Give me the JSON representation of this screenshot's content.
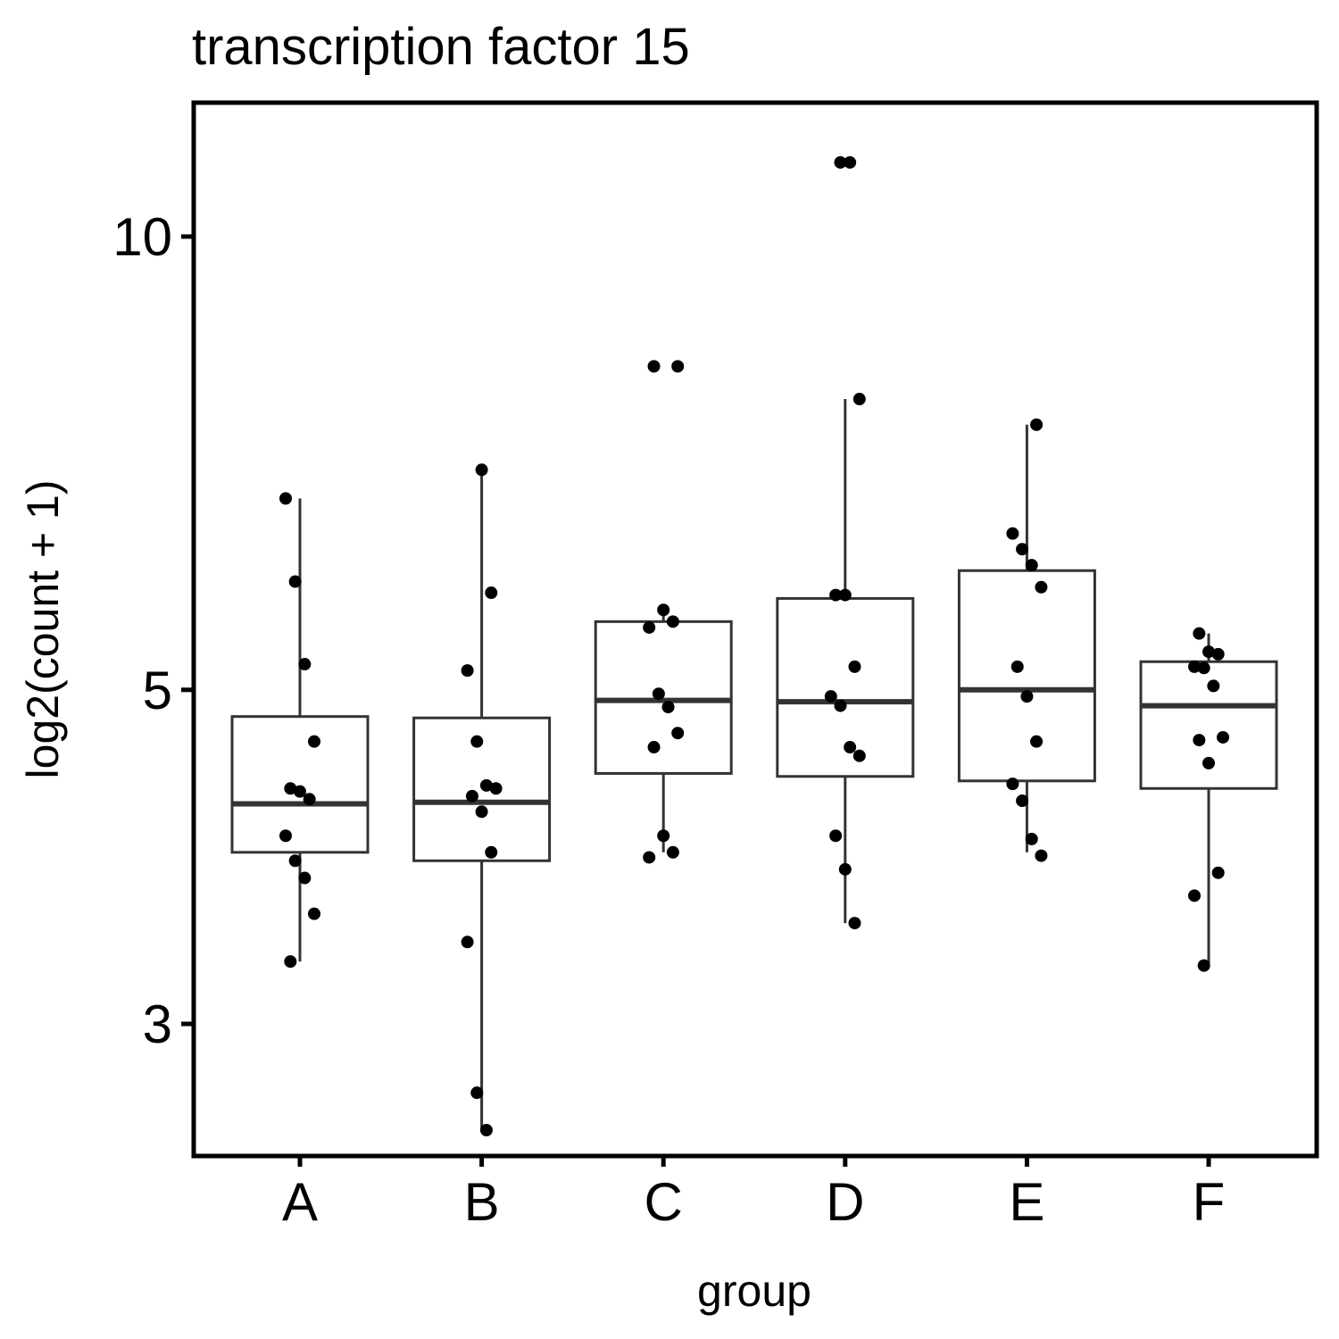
{
  "chart_data": {
    "type": "box",
    "title": "transcription factor 15",
    "xlabel": "group",
    "ylabel": "log2(count + 1)",
    "y_scale": "log",
    "ylim": [
      2.5,
      12
    ],
    "yticks": [
      3,
      5,
      10
    ],
    "grid": false,
    "legend": "none",
    "categories": [
      "A",
      "B",
      "C",
      "D",
      "E",
      "F"
    ],
    "colors": {
      "box_stroke": "#333333",
      "point": "#000000",
      "frame": "#000000"
    },
    "boxes": [
      {
        "group": "A",
        "q1": 3.9,
        "median": 4.2,
        "q3": 4.8,
        "whisker_low": 3.3,
        "whisker_high": 6.7
      },
      {
        "group": "B",
        "q1": 3.85,
        "median": 4.21,
        "q3": 4.79,
        "whisker_low": 2.55,
        "whisker_high": 7.0
      },
      {
        "group": "C",
        "q1": 4.4,
        "median": 4.92,
        "q3": 5.55,
        "whisker_low": 3.9,
        "whisker_high": 5.65
      },
      {
        "group": "D",
        "q1": 4.38,
        "median": 4.91,
        "q3": 5.75,
        "whisker_low": 3.5,
        "whisker_high": 7.8
      },
      {
        "group": "E",
        "q1": 4.35,
        "median": 5.0,
        "q3": 6.0,
        "whisker_low": 3.9,
        "whisker_high": 7.5
      },
      {
        "group": "F",
        "q1": 4.3,
        "median": 4.88,
        "q3": 5.22,
        "whisker_low": 3.28,
        "whisker_high": 5.45
      }
    ],
    "points": [
      {
        "group": "A",
        "values": [
          6.7,
          5.9,
          5.2,
          4.62,
          4.3,
          4.28,
          4.23,
          4.0,
          3.85,
          3.75,
          3.55,
          3.3
        ]
      },
      {
        "group": "B",
        "values": [
          7.0,
          5.8,
          5.15,
          4.62,
          4.32,
          4.3,
          4.25,
          4.15,
          3.9,
          3.4,
          2.7,
          2.55
        ]
      },
      {
        "group": "C",
        "values": [
          8.2,
          8.2,
          5.65,
          5.55,
          5.5,
          4.97,
          4.87,
          4.68,
          4.58,
          4.0,
          3.9,
          3.87
        ]
      },
      {
        "group": "D",
        "values": [
          11.2,
          11.2,
          7.8,
          5.78,
          5.78,
          5.18,
          4.95,
          4.88,
          4.58,
          4.52,
          4.0,
          3.8,
          3.5
        ]
      },
      {
        "group": "E",
        "values": [
          7.5,
          6.35,
          6.2,
          6.05,
          5.85,
          5.18,
          4.95,
          4.62,
          4.33,
          4.22,
          3.98,
          3.88
        ]
      },
      {
        "group": "F",
        "values": [
          5.45,
          5.3,
          5.28,
          5.18,
          5.17,
          5.03,
          4.65,
          4.63,
          4.47,
          3.78,
          3.65,
          3.28
        ]
      }
    ]
  }
}
